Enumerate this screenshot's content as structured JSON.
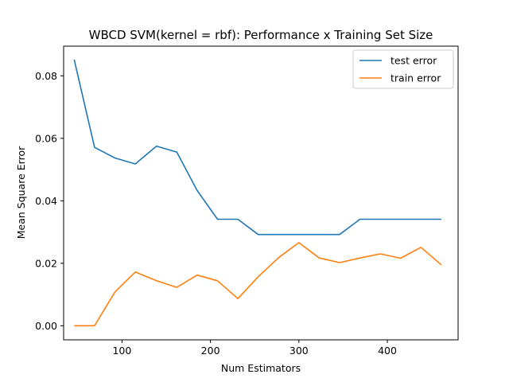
{
  "chart_data": {
    "type": "line",
    "title": "WBCD SVM(kernel = rbf): Performance x Training Set Size",
    "xlabel": "Num Estimators",
    "ylabel": "Mean Square Error",
    "xlim": [
      34,
      480
    ],
    "ylim": [
      -0.0045,
      0.0895
    ],
    "xticks": [
      100,
      200,
      300,
      400
    ],
    "xtick_labels": [
      "100",
      "200",
      "300",
      "400"
    ],
    "yticks": [
      0.0,
      0.02,
      0.04,
      0.06,
      0.08
    ],
    "ytick_labels": [
      "0.00",
      "0.02",
      "0.04",
      "0.06",
      "0.08"
    ],
    "grid": false,
    "legend_position": "top-right",
    "x": [
      46,
      69,
      92,
      115,
      139,
      162,
      185,
      208,
      231,
      254,
      277,
      300,
      323,
      346,
      369,
      392,
      415,
      438,
      461
    ],
    "series": [
      {
        "name": "test error",
        "color": "#1f77b4",
        "values": [
          0.0852,
          0.0571,
          0.0537,
          0.0518,
          0.0575,
          0.0556,
          0.0433,
          0.0341,
          0.0341,
          0.0292,
          0.0292,
          0.0292,
          0.0292,
          0.0292,
          0.0341,
          0.0341,
          0.0341,
          0.0341,
          0.0341
        ]
      },
      {
        "name": "train error",
        "color": "#ff7f0e",
        "values": [
          0.0,
          0.0,
          0.0108,
          0.0172,
          0.0144,
          0.0123,
          0.0162,
          0.0144,
          0.0087,
          0.0157,
          0.0218,
          0.0266,
          0.0217,
          0.0202,
          0.0217,
          0.023,
          0.0216,
          0.0251,
          0.0195
        ]
      }
    ]
  }
}
